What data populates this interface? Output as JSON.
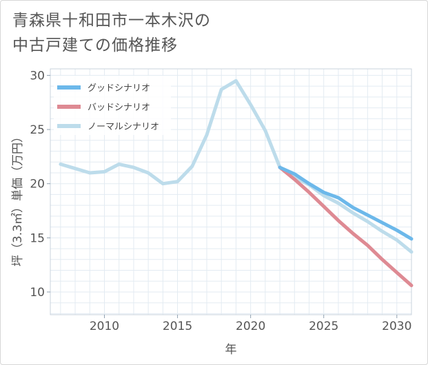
{
  "header": {
    "title_line1": "青森県十和田市一本木沢の",
    "title_line2": "中古戸建ての価格推移"
  },
  "chart_data": {
    "type": "line",
    "title": "青森県十和田市一本木沢の中古戸建ての価格推移",
    "xlabel": "年",
    "ylabel": "坪（3.3㎡）単価（万円）",
    "xlim": [
      2006.3,
      2031.0
    ],
    "ylim": [
      7.9,
      30.6
    ],
    "xticks": [
      2010,
      2015,
      2020,
      2025,
      2030
    ],
    "yticks": [
      10,
      15,
      20,
      25,
      30
    ],
    "grid": true,
    "legend_position": "top-left",
    "series": [
      {
        "name": "グッドシナリオ",
        "color": "#6cb8ea",
        "x": [
          2022,
          2023,
          2024,
          2025,
          2026,
          2027,
          2028,
          2029,
          2030,
          2031
        ],
        "y": [
          21.5,
          20.9,
          20.0,
          19.2,
          18.7,
          17.8,
          17.1,
          16.4,
          15.7,
          14.9
        ]
      },
      {
        "name": "バッドシナリオ",
        "color": "#de8a93",
        "x": [
          2022,
          2023,
          2024,
          2025,
          2026,
          2027,
          2028,
          2029,
          2030,
          2031
        ],
        "y": [
          21.5,
          20.4,
          19.2,
          17.9,
          16.6,
          15.4,
          14.3,
          13.0,
          11.8,
          10.6
        ]
      },
      {
        "name": "ノーマルシナリオ",
        "color": "#bddceb",
        "x": [
          2007,
          2008,
          2009,
          2010,
          2011,
          2012,
          2013,
          2014,
          2015,
          2016,
          2017,
          2018,
          2019,
          2020,
          2021,
          2022,
          2023,
          2024,
          2025,
          2026,
          2027,
          2028,
          2029,
          2030,
          2031
        ],
        "y": [
          21.8,
          21.4,
          21.0,
          21.1,
          21.8,
          21.5,
          21.0,
          20.0,
          20.2,
          21.6,
          24.5,
          28.7,
          29.5,
          27.3,
          24.9,
          21.5,
          20.6,
          19.9,
          18.9,
          18.2,
          17.3,
          16.5,
          15.6,
          14.8,
          13.7
        ]
      }
    ]
  }
}
